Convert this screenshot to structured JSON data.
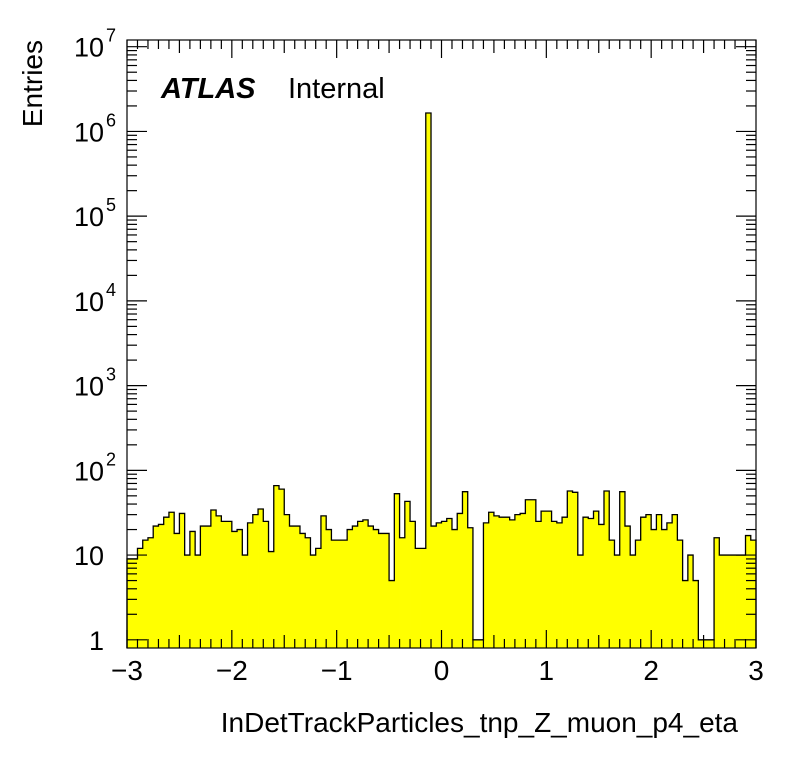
{
  "chart_data": {
    "type": "bar",
    "xlabel": "InDetTrackParticles_tnp_Z_muon_p4_eta",
    "ylabel": "Entries",
    "ylog": true,
    "xlim": [
      -3,
      3
    ],
    "ylim": [
      0.8,
      12000000
    ],
    "x_ticks": [
      -3,
      -2,
      -1,
      0,
      1,
      2,
      3
    ],
    "x_tick_labels": [
      "−3",
      "−2",
      "−1",
      "0",
      "1",
      "2",
      "3"
    ],
    "y_tick_labels": [
      {
        "value": 1,
        "base": "1",
        "exp": ""
      },
      {
        "value": 10,
        "base": "10",
        "exp": ""
      },
      {
        "value": 100,
        "base": "10",
        "exp": "2"
      },
      {
        "value": 1000,
        "base": "10",
        "exp": "3"
      },
      {
        "value": 10000,
        "base": "10",
        "exp": "4"
      },
      {
        "value": 100000,
        "base": "10",
        "exp": "5"
      },
      {
        "value": 1000000,
        "base": "10",
        "exp": "6"
      },
      {
        "value": 10000000,
        "base": "10",
        "exp": "7"
      }
    ],
    "bin_width": 0.05,
    "bin_start": -3,
    "values": [
      9,
      9,
      12,
      15,
      16,
      22,
      23,
      28,
      32,
      18,
      31,
      10,
      19,
      10,
      22,
      22,
      34,
      29,
      25,
      25,
      19,
      20,
      10,
      24,
      30,
      35,
      25,
      11,
      66,
      60,
      30,
      22,
      22,
      18,
      16,
      10,
      12,
      29,
      20,
      15,
      15,
      15,
      20,
      22,
      25,
      26,
      22,
      20,
      18,
      18,
      5,
      53,
      16,
      43,
      25,
      12,
      12,
      1650000,
      22,
      24,
      25,
      27,
      20,
      31,
      56,
      21,
      1,
      1,
      24,
      32,
      29,
      28,
      28,
      26,
      30,
      31,
      45,
      45,
      25,
      33,
      33,
      25,
      24,
      28,
      57,
      55,
      10,
      28,
      27,
      33,
      23,
      57,
      15,
      10,
      56,
      22,
      10,
      15,
      28,
      30,
      20,
      30,
      20,
      24,
      30,
      15,
      5,
      10,
      5,
      1,
      1,
      1,
      16,
      10,
      10,
      10,
      10,
      10,
      17,
      15
    ],
    "fill_color": "#ffff00",
    "line_color": "#000000",
    "annotations": {
      "experiment": "ATLAS",
      "status": "Internal"
    }
  }
}
